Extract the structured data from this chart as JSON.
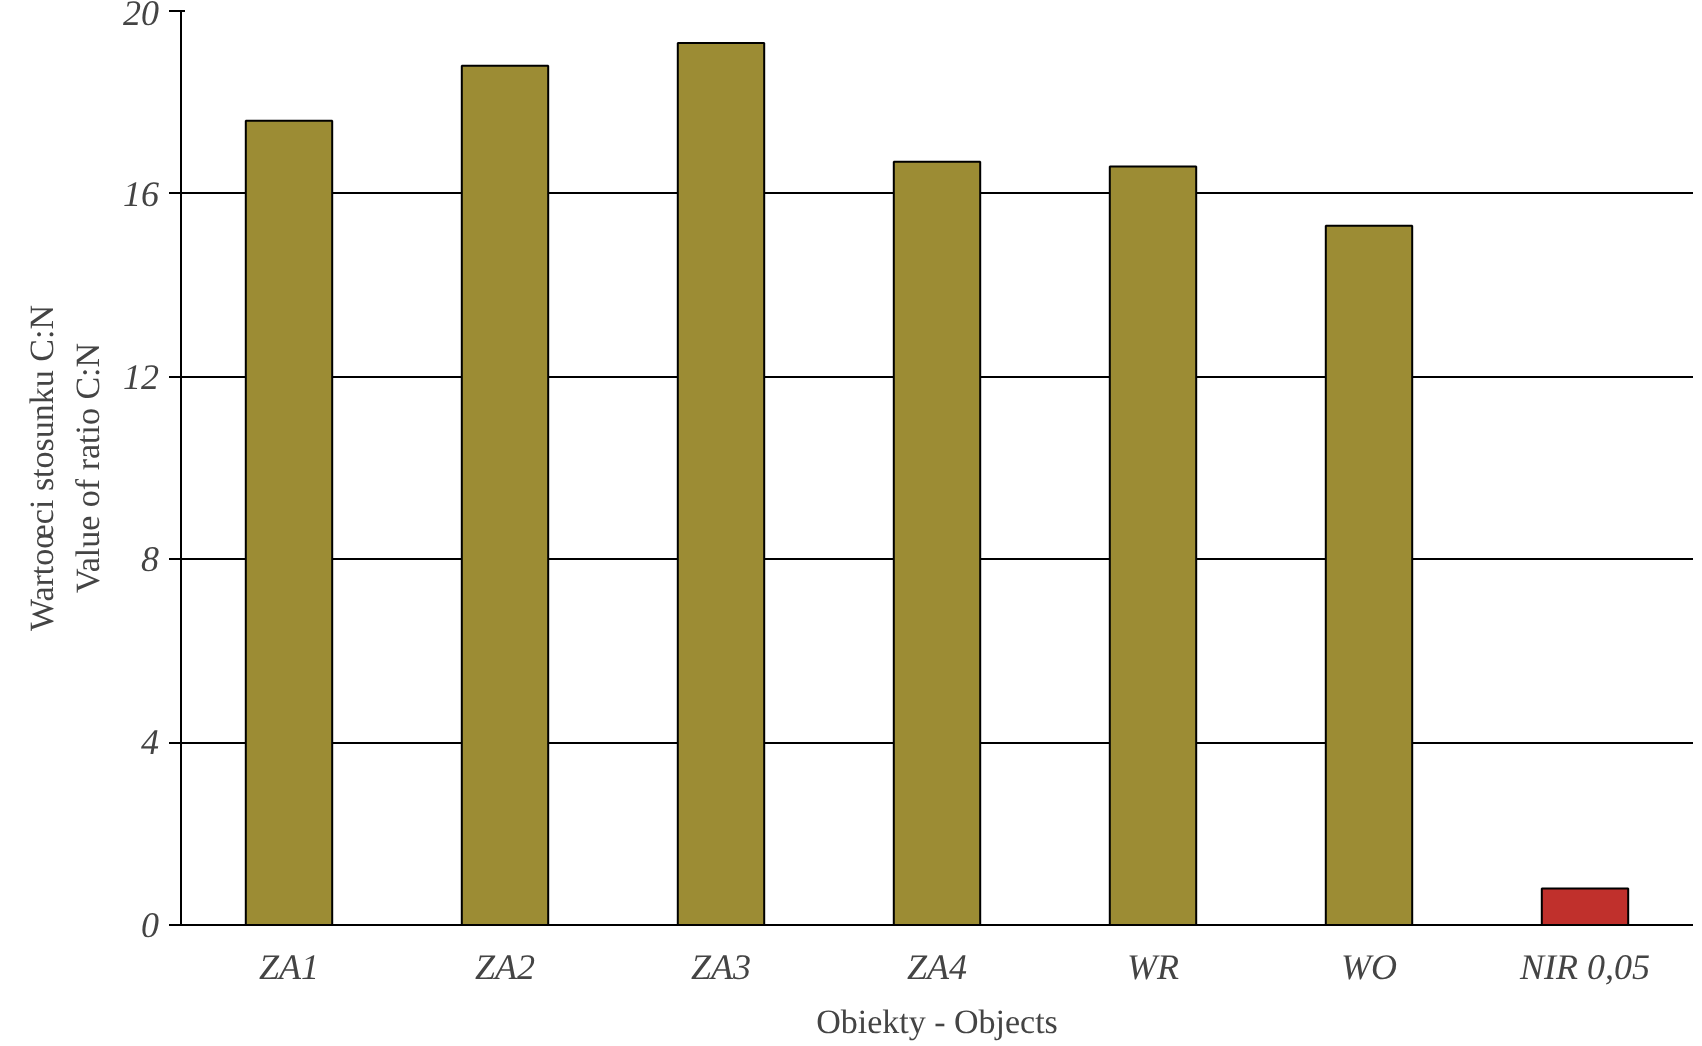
{
  "chart_data": {
    "type": "bar",
    "xlabel": "Obiekty - Objects",
    "ylabel": "Wartoœci stosunku C:N\nValue of ratio C:N",
    "categories": [
      "ZA1",
      "ZA2",
      "ZA3",
      "ZA4",
      "WR",
      "WO",
      "NIR 0,05"
    ],
    "values": [
      17.6,
      18.8,
      19.3,
      16.7,
      16.6,
      15.3,
      0.8
    ],
    "colors": [
      "#9c8c34",
      "#9c8c34",
      "#9c8c34",
      "#9c8c34",
      "#9c8c34",
      "#9c8c34",
      "#c0302c"
    ],
    "ylim": [
      0,
      20
    ],
    "yticks": [
      0,
      4,
      8,
      12,
      16,
      20
    ],
    "grid": "y"
  }
}
